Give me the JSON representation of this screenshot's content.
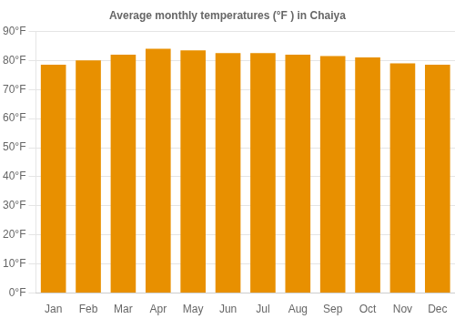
{
  "chart_data": {
    "type": "bar",
    "title": "Average monthly temperatures (°F ) in Chaiya",
    "categories": [
      "Jan",
      "Feb",
      "Mar",
      "Apr",
      "May",
      "Jun",
      "Jul",
      "Aug",
      "Sep",
      "Oct",
      "Nov",
      "Dec"
    ],
    "values": [
      78.5,
      80.0,
      82.0,
      84.0,
      83.5,
      82.5,
      82.5,
      82.0,
      81.5,
      81.0,
      79.0,
      78.5
    ],
    "color": "#E89000",
    "ylim": [
      0,
      90
    ],
    "yticks": [
      {
        "value": 0,
        "label": "0°F"
      },
      {
        "value": 10,
        "label": "10°F"
      },
      {
        "value": 20,
        "label": "20°F"
      },
      {
        "value": 30,
        "label": "30°F"
      },
      {
        "value": 40,
        "label": "40°F"
      },
      {
        "value": 50,
        "label": "50°F"
      },
      {
        "value": 60,
        "label": "60°F"
      },
      {
        "value": 70,
        "label": "70°F"
      },
      {
        "value": 80,
        "label": "80°F"
      },
      {
        "value": 90,
        "label": "90°F"
      }
    ],
    "grid": true
  }
}
